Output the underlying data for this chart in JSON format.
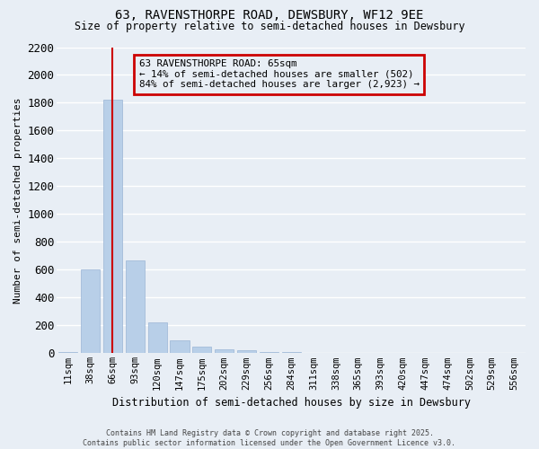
{
  "title1": "63, RAVENSTHORPE ROAD, DEWSBURY, WF12 9EE",
  "title2": "Size of property relative to semi-detached houses in Dewsbury",
  "xlabel": "Distribution of semi-detached houses by size in Dewsbury",
  "ylabel": "Number of semi-detached properties",
  "categories": [
    "11sqm",
    "38sqm",
    "66sqm",
    "93sqm",
    "120sqm",
    "147sqm",
    "175sqm",
    "202sqm",
    "229sqm",
    "256sqm",
    "284sqm",
    "311sqm",
    "338sqm",
    "365sqm",
    "393sqm",
    "420sqm",
    "447sqm",
    "474sqm",
    "502sqm",
    "529sqm",
    "556sqm"
  ],
  "values": [
    10,
    600,
    1820,
    670,
    220,
    90,
    45,
    30,
    25,
    10,
    10,
    5,
    5,
    2,
    2,
    2,
    2,
    2,
    2,
    2,
    2
  ],
  "bar_color": "#b8cfe8",
  "highlight_line_index": 2,
  "highlight_line_color": "#cc0000",
  "annotation_text": "63 RAVENSTHORPE ROAD: 65sqm\n← 14% of semi-detached houses are smaller (502)\n84% of semi-detached houses are larger (2,923) →",
  "annotation_box_color": "#cc0000",
  "ylim": [
    0,
    2200
  ],
  "yticks": [
    0,
    200,
    400,
    600,
    800,
    1000,
    1200,
    1400,
    1600,
    1800,
    2000,
    2200
  ],
  "footer1": "Contains HM Land Registry data © Crown copyright and database right 2025.",
  "footer2": "Contains public sector information licensed under the Open Government Licence v3.0.",
  "bg_color": "#e8eef5",
  "grid_color": "#ffffff",
  "bar_width": 0.85
}
